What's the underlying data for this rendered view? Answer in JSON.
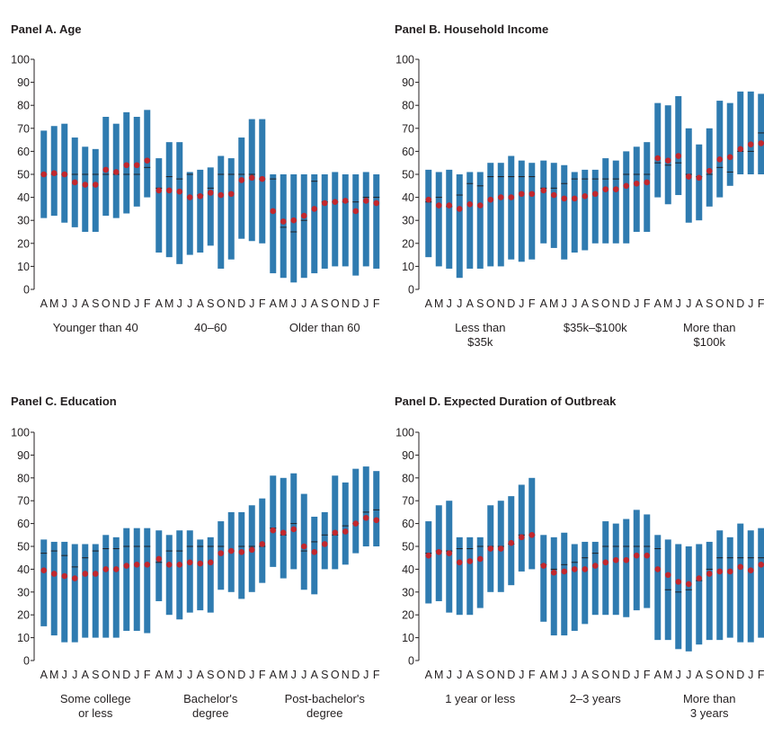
{
  "chart_data": [
    {
      "type": "bar",
      "title": "Panel A. Age",
      "ylim": [
        0,
        100
      ],
      "yticks": [
        0,
        10,
        20,
        30,
        40,
        50,
        60,
        70,
        80,
        90,
        100
      ],
      "colors": {
        "bar": "#2f7bb0",
        "median": "#c2272d",
        "mean": "#231f20"
      },
      "groups": [
        {
          "label": [
            "Younger than 40"
          ],
          "months": [
            "A",
            "M",
            "J",
            "J",
            "A",
            "S",
            "O",
            "N",
            "D",
            "J",
            "F"
          ],
          "low": [
            31,
            32,
            29,
            27,
            25,
            25,
            32,
            31,
            33,
            36,
            40
          ],
          "high": [
            69,
            71,
            72,
            66,
            62,
            61,
            75,
            72,
            77,
            75,
            78
          ],
          "median": [
            50,
            50.5,
            50,
            46.5,
            45.5,
            45.5,
            52,
            51,
            54,
            54,
            56
          ],
          "mean": [
            50,
            50,
            50,
            50,
            50,
            50,
            50,
            50,
            50,
            50,
            53
          ]
        },
        {
          "label": [
            "40–60"
          ],
          "months": [
            "A",
            "M",
            "J",
            "J",
            "A",
            "S",
            "O",
            "N",
            "D",
            "J",
            "F"
          ],
          "low": [
            16,
            14,
            11,
            15,
            16,
            19,
            9,
            13,
            22,
            21,
            20
          ],
          "high": [
            57,
            64,
            64,
            51,
            52,
            53,
            58,
            57,
            66,
            74,
            74
          ],
          "median": [
            43,
            43,
            42.5,
            40,
            40.5,
            42,
            41,
            41.5,
            47.5,
            48.5,
            48
          ],
          "mean": [
            44,
            49,
            48,
            50,
            41,
            44,
            50,
            50,
            50,
            50,
            48
          ]
        },
        {
          "label": [
            "Older than 60"
          ],
          "months": [
            "A",
            "M",
            "J",
            "J",
            "A",
            "S",
            "O",
            "N",
            "D",
            "J",
            "F"
          ],
          "low": [
            7,
            5,
            3,
            5,
            7,
            9,
            10,
            10,
            6,
            10,
            9
          ],
          "high": [
            50,
            50,
            50,
            50,
            50,
            50,
            51,
            50,
            50,
            51,
            50
          ],
          "median": [
            34,
            29.5,
            30,
            32,
            35,
            37.5,
            38,
            38.5,
            34,
            38.5,
            37.5
          ],
          "mean": [
            48,
            27,
            25,
            30,
            47,
            38,
            38,
            38,
            38,
            40,
            40
          ]
        }
      ]
    },
    {
      "type": "bar",
      "title": "Panel B. Household Income",
      "ylim": [
        0,
        100
      ],
      "yticks": [
        0,
        10,
        20,
        30,
        40,
        50,
        60,
        70,
        80,
        90,
        100
      ],
      "colors": {
        "bar": "#2f7bb0",
        "median": "#c2272d",
        "mean": "#231f20"
      },
      "groups": [
        {
          "label": [
            "Less than",
            "$35k"
          ],
          "months": [
            "A",
            "M",
            "J",
            "J",
            "A",
            "S",
            "O",
            "N",
            "D",
            "J",
            "F"
          ],
          "low": [
            14,
            10,
            9,
            5,
            9,
            9,
            10,
            10,
            13,
            12,
            13
          ],
          "high": [
            52,
            51,
            52,
            50,
            51,
            51,
            55,
            55,
            58,
            56,
            55
          ],
          "median": [
            39,
            36.5,
            36.5,
            35,
            37,
            36.5,
            39,
            40,
            40,
            41.5,
            41.5
          ],
          "mean": [
            38,
            40,
            36,
            41,
            46,
            45,
            49,
            49,
            49,
            49,
            49
          ]
        },
        {
          "label": [
            "$35k–$100k"
          ],
          "months": [
            "A",
            "M",
            "J",
            "J",
            "A",
            "S",
            "O",
            "N",
            "D",
            "J",
            "F"
          ],
          "low": [
            20,
            18,
            13,
            16,
            17,
            20,
            20,
            20,
            20,
            25,
            25
          ],
          "high": [
            56,
            55,
            54,
            51,
            52,
            52,
            57,
            56,
            60,
            62,
            64
          ],
          "median": [
            43,
            41,
            39.5,
            39.5,
            40.5,
            41.5,
            43.5,
            43.5,
            45,
            46,
            46.5
          ],
          "mean": [
            44,
            44,
            46,
            48,
            48,
            48,
            48,
            48,
            50,
            50,
            50
          ]
        },
        {
          "label": [
            "More than",
            "$100k"
          ],
          "months": [
            "A",
            "M",
            "J",
            "J",
            "A",
            "S",
            "O",
            "N",
            "D",
            "J",
            "F"
          ],
          "low": [
            40,
            37,
            41,
            29,
            30,
            36,
            40,
            45,
            50,
            50,
            50
          ],
          "high": [
            81,
            80,
            84,
            70,
            63,
            70,
            82,
            81,
            86,
            86,
            85
          ],
          "median": [
            57,
            56,
            58,
            49,
            48.5,
            51.5,
            56.5,
            57.5,
            61,
            63,
            63.5
          ],
          "mean": [
            55,
            54,
            55,
            50,
            49,
            50,
            53,
            51,
            60,
            60,
            68
          ]
        }
      ]
    },
    {
      "type": "bar",
      "title": "Panel C. Education",
      "ylim": [
        0,
        100
      ],
      "yticks": [
        0,
        10,
        20,
        30,
        40,
        50,
        60,
        70,
        80,
        90,
        100
      ],
      "colors": {
        "bar": "#2f7bb0",
        "median": "#c2272d",
        "mean": "#231f20"
      },
      "groups": [
        {
          "label": [
            "Some college",
            "or less"
          ],
          "months": [
            "A",
            "M",
            "J",
            "J",
            "A",
            "S",
            "O",
            "N",
            "D",
            "J",
            "F"
          ],
          "low": [
            15,
            11,
            8,
            8,
            10,
            10,
            10,
            10,
            13,
            13,
            12
          ],
          "high": [
            53,
            52,
            52,
            51,
            51,
            51,
            55,
            54,
            58,
            58,
            58
          ],
          "median": [
            39.5,
            38,
            37,
            36,
            38,
            38,
            40,
            40,
            41.5,
            42,
            42
          ],
          "mean": [
            47,
            48,
            46,
            41,
            45,
            48,
            49,
            49,
            50,
            50,
            50
          ]
        },
        {
          "label": [
            "Bachelor's",
            "degree"
          ],
          "months": [
            "A",
            "M",
            "J",
            "J",
            "A",
            "S",
            "O",
            "N",
            "D",
            "J",
            "F"
          ],
          "low": [
            26,
            20,
            18,
            21,
            22,
            21,
            31,
            30,
            27,
            30,
            34
          ],
          "high": [
            57,
            55,
            57,
            57,
            53,
            54,
            61,
            65,
            65,
            68,
            71
          ],
          "median": [
            44.5,
            42,
            42,
            43,
            42.5,
            43,
            47,
            48,
            47.5,
            48.5,
            51
          ],
          "mean": [
            43,
            48,
            48,
            50,
            50,
            50,
            50,
            48,
            50,
            50,
            50
          ]
        },
        {
          "label": [
            "Post-bachelor's",
            "degree"
          ],
          "months": [
            "A",
            "M",
            "J",
            "J",
            "A",
            "S",
            "O",
            "N",
            "D",
            "J",
            "F"
          ],
          "low": [
            41,
            36,
            40,
            31,
            29,
            40,
            40,
            42,
            47,
            50,
            50
          ],
          "high": [
            81,
            80,
            82,
            73,
            63,
            65,
            81,
            78,
            84,
            85,
            83
          ],
          "median": [
            57,
            56,
            57.5,
            50,
            47.5,
            51,
            56,
            56.5,
            60,
            62.5,
            61.5
          ],
          "mean": [
            58,
            55,
            60,
            48,
            52,
            55,
            55,
            59,
            60,
            65,
            66
          ]
        }
      ]
    },
    {
      "type": "bar",
      "title": "Panel D. Expected Duration of Outbreak",
      "ylim": [
        0,
        100
      ],
      "yticks": [
        0,
        10,
        20,
        30,
        40,
        50,
        60,
        70,
        80,
        90,
        100
      ],
      "colors": {
        "bar": "#2f7bb0",
        "median": "#c2272d",
        "mean": "#231f20"
      },
      "groups": [
        {
          "label": [
            "1 year or less"
          ],
          "months": [
            "A",
            "M",
            "J",
            "J",
            "A",
            "S",
            "O",
            "N",
            "D",
            "J",
            "F"
          ],
          "low": [
            25,
            26,
            21,
            20,
            20,
            23,
            30,
            30,
            33,
            39,
            40
          ],
          "high": [
            61,
            68,
            70,
            54,
            54,
            54,
            68,
            70,
            72,
            77,
            80
          ],
          "median": [
            46,
            47.5,
            47,
            43,
            43.5,
            44.5,
            49,
            49,
            51.5,
            54,
            55
          ],
          "mean": [
            47,
            48,
            48,
            49,
            49,
            50,
            50,
            50,
            51,
            55,
            55
          ]
        },
        {
          "label": [
            "2–3 years"
          ],
          "months": [
            "A",
            "M",
            "J",
            "J",
            "A",
            "S",
            "O",
            "N",
            "D",
            "J",
            "F"
          ],
          "low": [
            17,
            11,
            11,
            13,
            16,
            20,
            20,
            20,
            19,
            22,
            23
          ],
          "high": [
            55,
            54,
            56,
            51,
            52,
            52,
            61,
            60,
            62,
            66,
            64
          ],
          "median": [
            41.5,
            38.5,
            39,
            40,
            40,
            41.5,
            43,
            44,
            44,
            46,
            46
          ],
          "mean": [
            42,
            40,
            42,
            43,
            45,
            47,
            50,
            50,
            50,
            50,
            50
          ]
        },
        {
          "label": [
            "More than",
            "3 years"
          ],
          "months": [
            "A",
            "M",
            "J",
            "J",
            "A",
            "S",
            "O",
            "N",
            "D",
            "J",
            "F"
          ],
          "low": [
            9,
            9,
            5,
            4,
            7,
            9,
            9,
            10,
            8,
            8,
            10
          ],
          "high": [
            55,
            53,
            51,
            50,
            51,
            52,
            57,
            54,
            60,
            57,
            58
          ],
          "median": [
            40,
            37.5,
            34.5,
            33.5,
            36,
            38,
            39,
            39,
            41,
            39.5,
            42
          ],
          "mean": [
            49,
            31,
            30,
            31,
            35,
            40,
            45,
            45,
            45,
            45,
            45
          ]
        }
      ]
    }
  ]
}
